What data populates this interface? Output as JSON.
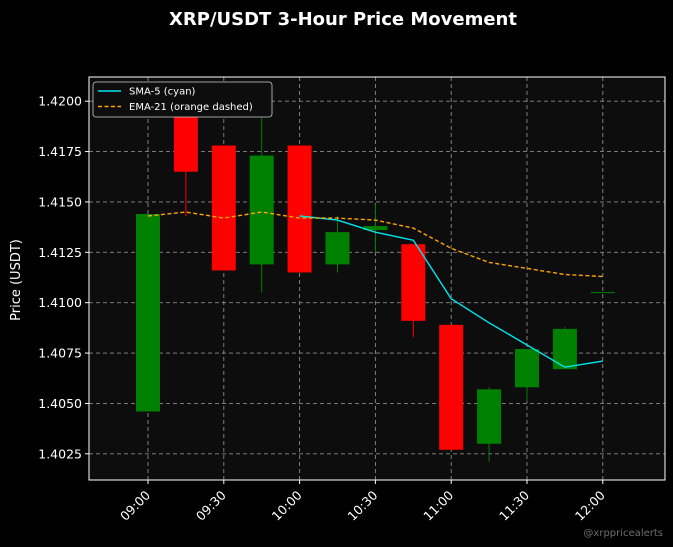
{
  "chart_data": {
    "type": "candlestick",
    "title": "XRP/USDT 3-Hour Price Movement",
    "xlabel": "",
    "ylabel": "Price (USDT)",
    "ylim": [
      1.4012,
      1.4212
    ],
    "y_ticks": [
      "1.4025",
      "1.4050",
      "1.4075",
      "1.4100",
      "1.4125",
      "1.4150",
      "1.4175",
      "1.4200"
    ],
    "x_ticks": [
      "09:00",
      "09:30",
      "10:00",
      "10:30",
      "11:00",
      "11:30",
      "12:00"
    ],
    "grid": true,
    "legend_position": "top-left",
    "candles": [
      {
        "time": "09:00",
        "open": 1.4046,
        "high": 1.4144,
        "low": 1.4046,
        "close": 1.4144
      },
      {
        "time": "09:15",
        "open": 1.4196,
        "high": 1.4205,
        "low": 1.4143,
        "close": 1.4165
      },
      {
        "time": "09:30",
        "open": 1.4178,
        "high": 1.4178,
        "low": 1.4116,
        "close": 1.4116
      },
      {
        "time": "09:45",
        "open": 1.4119,
        "high": 1.4193,
        "low": 1.4105,
        "close": 1.4173
      },
      {
        "time": "10:00",
        "open": 1.4178,
        "high": 1.4178,
        "low": 1.4115,
        "close": 1.4115
      },
      {
        "time": "10:15",
        "open": 1.4119,
        "high": 1.4143,
        "low": 1.4115,
        "close": 1.4135
      },
      {
        "time": "10:30",
        "open": 1.4136,
        "high": 1.4149,
        "low": 1.4125,
        "close": 1.4138
      },
      {
        "time": "10:45",
        "open": 1.4129,
        "high": 1.4129,
        "low": 1.4083,
        "close": 1.4091
      },
      {
        "time": "11:00",
        "open": 1.4089,
        "high": 1.4089,
        "low": 1.4027,
        "close": 1.4027
      },
      {
        "time": "11:15",
        "open": 1.403,
        "high": 1.4058,
        "low": 1.4021,
        "close": 1.4057
      },
      {
        "time": "11:30",
        "open": 1.4058,
        "high": 1.4077,
        "low": 1.4051,
        "close": 1.4077
      },
      {
        "time": "11:45",
        "open": 1.4067,
        "high": 1.4088,
        "low": 1.4067,
        "close": 1.4087
      },
      {
        "time": "12:00",
        "open": 1.4105,
        "high": 1.4105,
        "low": 1.4105,
        "close": 1.4105
      }
    ],
    "series": [
      {
        "name": "SMA-5 (cyan)",
        "color": "#00e5ee",
        "style": "solid",
        "x": [
          "10:00",
          "10:15",
          "10:30",
          "10:45",
          "11:00",
          "11:15",
          "11:30",
          "11:45",
          "12:00"
        ],
        "values": [
          1.4143,
          1.4141,
          1.4135,
          1.4131,
          1.4102,
          1.409,
          1.4079,
          1.4068,
          1.4071
        ]
      },
      {
        "name": "EMA-21 (orange dashed)",
        "color": "#ffa500",
        "style": "dashed",
        "x": [
          "09:00",
          "09:15",
          "09:30",
          "09:45",
          "10:00",
          "10:15",
          "10:30",
          "10:45",
          "11:00",
          "11:15",
          "11:30",
          "11:45",
          "12:00"
        ],
        "values": [
          1.4143,
          1.4145,
          1.4142,
          1.4145,
          1.4142,
          1.4142,
          1.4141,
          1.4137,
          1.4127,
          1.412,
          1.4117,
          1.4114,
          1.4113
        ]
      }
    ],
    "colors": {
      "background": "#000000",
      "plot_background": "#0d0d0d",
      "up": "#008000",
      "down": "#ff0000",
      "grid": "#8a8a8a"
    }
  },
  "watermark": "@xrppricealerts"
}
